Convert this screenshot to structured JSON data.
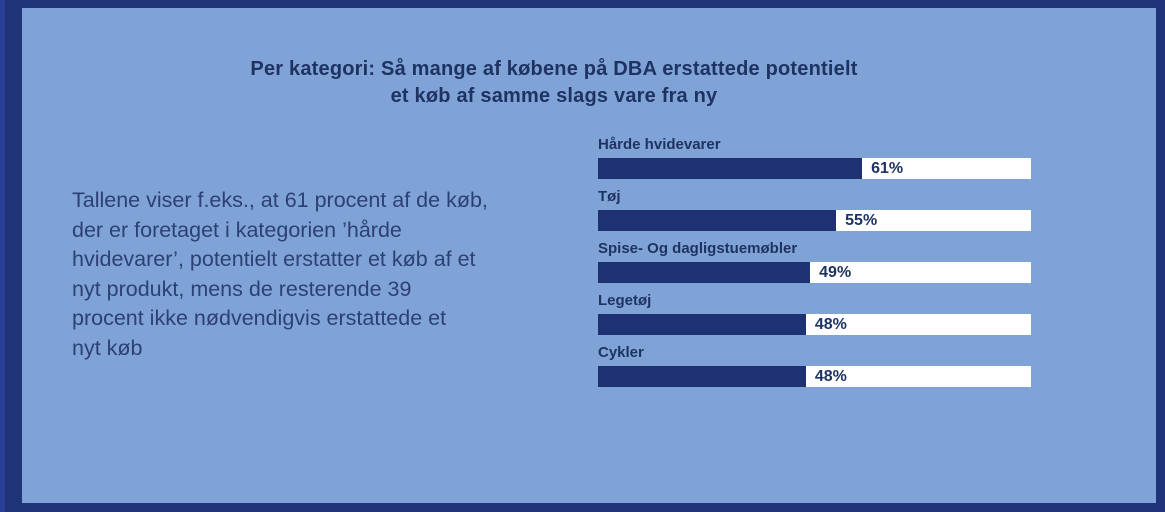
{
  "frame": {
    "background": "#80a3d7",
    "border_color": "#1f3577",
    "accent_strip_color": "#2a3f97"
  },
  "title": {
    "line1": "Per kategori: Så mange af købene på DBA erstattede potentielt",
    "line2": "et køb af samme slags vare fra ny"
  },
  "description_lines": [
    "Tallene viser f.eks., at 61 procent af de køb,",
    "der er foretaget i kategorien ’hårde",
    "hvidevarer’, potentielt erstatter et køb af et",
    "nyt produkt, mens de resterende 39",
    "procent ikke nødvendigvis erstattede et",
    "nyt køb"
  ],
  "chart_data": {
    "type": "bar",
    "orientation": "horizontal",
    "title": "Per kategori: Så mange af købene på DBA erstattede potentielt et køb af samme slags vare fra ny",
    "categories": [
      "Hårde hvidevarer",
      "Tøj",
      "Spise- Og dagligstuemøbler",
      "Legetøj",
      "Cykler"
    ],
    "values": [
      61,
      55,
      49,
      48,
      48
    ],
    "value_labels": [
      "61%",
      "55%",
      "49%",
      "48%",
      "48%"
    ],
    "xlim": [
      0,
      100
    ],
    "grid": false,
    "legend": false,
    "bar_color": "#1e3273",
    "track_color": "#ffffff",
    "label_color": "#1e3361"
  }
}
